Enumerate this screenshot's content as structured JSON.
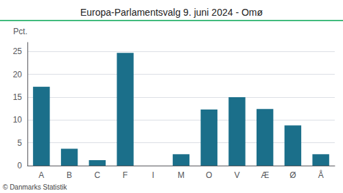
{
  "chart_data": {
    "type": "bar",
    "title": "Europa-Parlamentsvalg 9. juni 2024 - Omø",
    "ylabel": "Pct.",
    "footnote": "© Danmarks Statistik",
    "categories": [
      "A",
      "B",
      "C",
      "F",
      "I",
      "M",
      "O",
      "V",
      "Æ",
      "Ø",
      "Å"
    ],
    "values": [
      17.3,
      3.7,
      1.2,
      24.7,
      0.0,
      2.5,
      12.3,
      15.0,
      12.4,
      8.8,
      2.5
    ],
    "color": "#1b6f8a",
    "ylim": [
      0,
      27
    ],
    "yticks": [
      0,
      5,
      10,
      15,
      20,
      25
    ],
    "grid": true
  }
}
